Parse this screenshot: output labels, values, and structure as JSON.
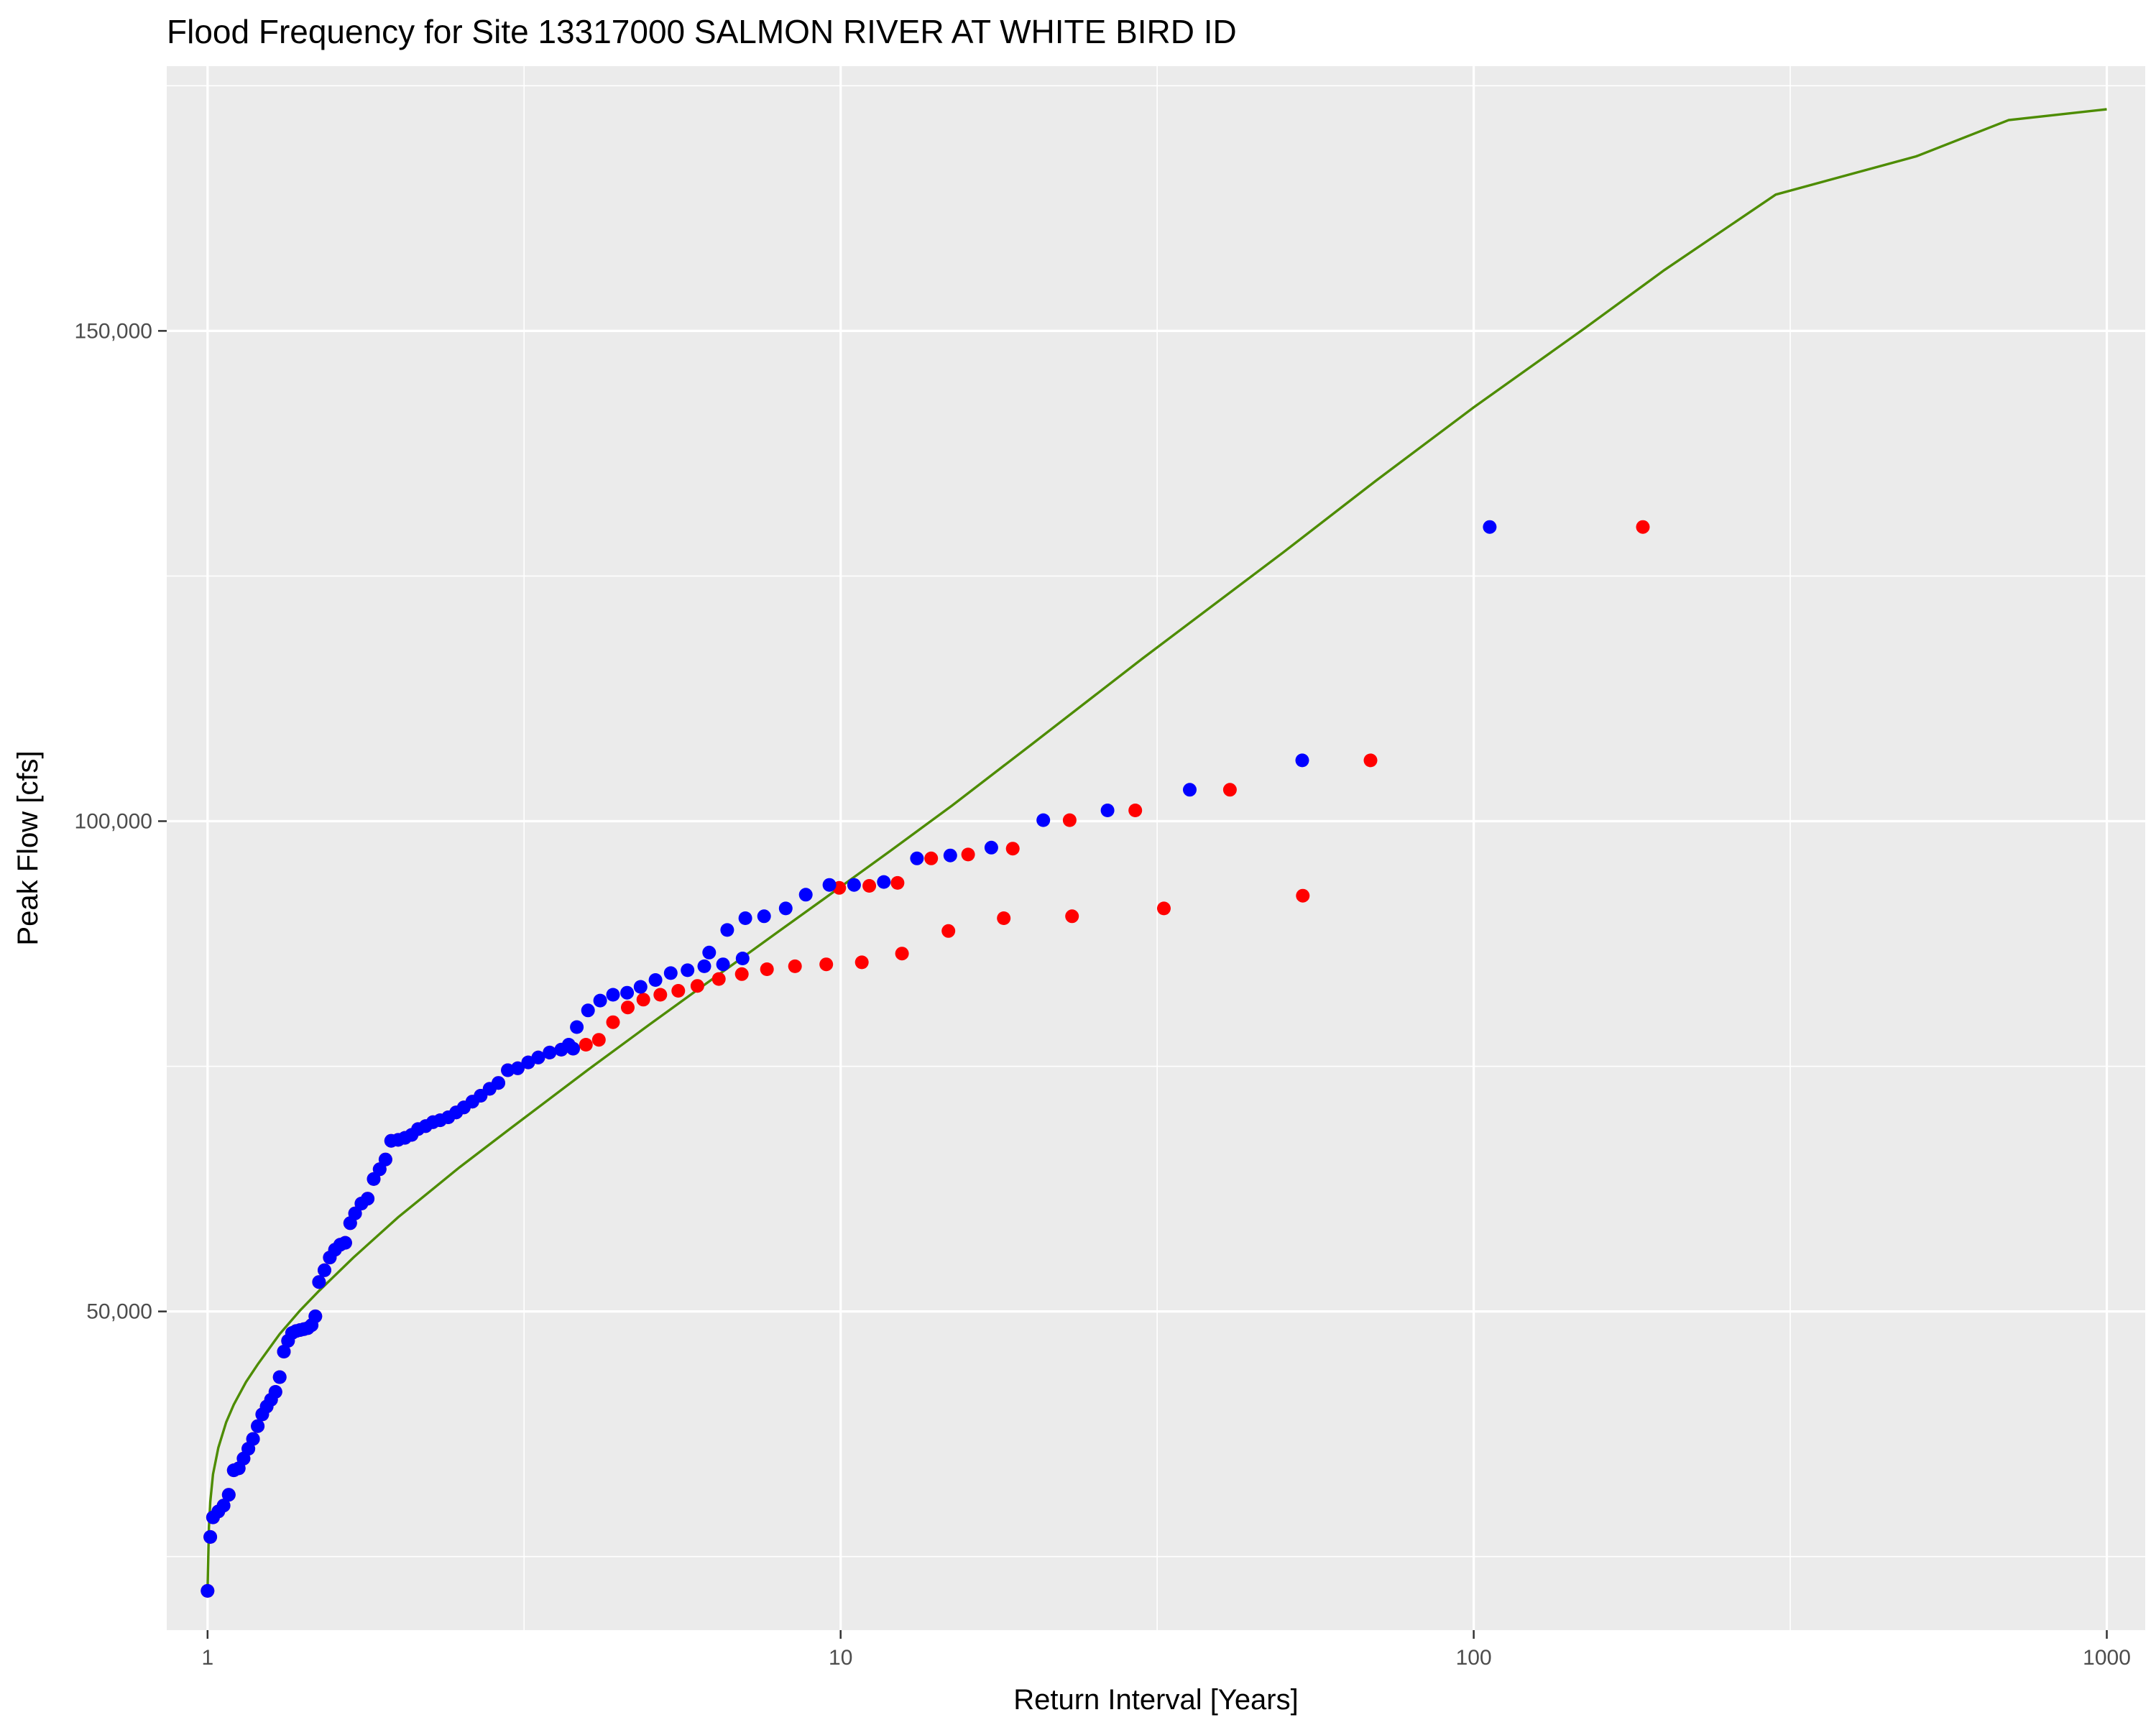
{
  "chart_data": {
    "type": "scatter",
    "title": "Flood Frequency for Site 13317000 SALMON RIVER AT WHITE BIRD ID",
    "xlabel": "Return Interval [Years]",
    "ylabel": "Peak Flow [cfs]",
    "x_scale": "log10",
    "xlim": [
      0.862,
      1150
    ],
    "ylim": [
      17500,
      177000
    ],
    "x_ticks": [
      {
        "value": 1,
        "label": "1"
      },
      {
        "value": 10,
        "label": "10"
      },
      {
        "value": 100,
        "label": "100"
      },
      {
        "value": 1000,
        "label": "1000"
      }
    ],
    "x_minor_grid": [
      3.162,
      31.62,
      316.2
    ],
    "y_ticks": [
      {
        "value": 50000,
        "label": "50,000"
      },
      {
        "value": 100000,
        "label": "100,000"
      },
      {
        "value": 150000,
        "label": "150,000"
      }
    ],
    "y_minor_grid": [
      25000,
      75000,
      125000,
      175000
    ],
    "grid": true,
    "colors": {
      "panel": "#ebebeb",
      "grid": "#ffffff",
      "series_red": "#ff0000",
      "series_blue": "#0000ff",
      "fit_line": "#4d8c00"
    },
    "series": [
      {
        "kind": "points",
        "color": "#ff0000",
        "points": [
          [
            1.0,
            21500
          ],
          [
            1.01,
            27000
          ],
          [
            1.02,
            29000
          ],
          [
            1.04,
            29600
          ],
          [
            1.06,
            30200
          ],
          [
            1.08,
            31300
          ],
          [
            1.1,
            33800
          ],
          [
            1.12,
            34000
          ],
          [
            1.14,
            35000
          ],
          [
            1.16,
            36000
          ],
          [
            1.18,
            37000
          ],
          [
            1.2,
            38300
          ],
          [
            1.22,
            39500
          ],
          [
            1.24,
            40300
          ],
          [
            1.26,
            41000
          ],
          [
            1.28,
            41800
          ],
          [
            1.3,
            43300
          ],
          [
            1.32,
            45900
          ],
          [
            1.34,
            47000
          ],
          [
            1.36,
            47800
          ],
          [
            1.38,
            48000
          ],
          [
            1.4,
            48100
          ],
          [
            1.42,
            48200
          ],
          [
            1.44,
            48300
          ],
          [
            1.46,
            48600
          ],
          [
            1.48,
            49500
          ],
          [
            1.5,
            53000
          ],
          [
            1.53,
            54200
          ],
          [
            1.56,
            55500
          ],
          [
            1.59,
            56300
          ],
          [
            1.62,
            56800
          ],
          [
            1.65,
            57000
          ],
          [
            1.68,
            59000
          ],
          [
            1.71,
            60000
          ],
          [
            1.75,
            61000
          ],
          [
            1.79,
            61500
          ],
          [
            1.83,
            63500
          ],
          [
            1.87,
            64500
          ],
          [
            1.91,
            65500
          ],
          [
            1.95,
            67400
          ],
          [
            2.0,
            67500
          ],
          [
            2.05,
            67700
          ],
          [
            2.1,
            68000
          ],
          [
            2.15,
            68600
          ],
          [
            2.21,
            68900
          ],
          [
            2.27,
            69300
          ],
          [
            2.33,
            69500
          ],
          [
            2.4,
            69800
          ],
          [
            2.47,
            70300
          ],
          [
            2.54,
            70800
          ],
          [
            2.62,
            71400
          ],
          [
            2.7,
            72000
          ],
          [
            2.79,
            72700
          ],
          [
            2.88,
            73300
          ],
          [
            2.98,
            74600
          ],
          [
            3.09,
            74800
          ],
          [
            3.21,
            75400
          ],
          [
            3.33,
            75900
          ],
          [
            3.47,
            76400
          ],
          [
            3.62,
            76700
          ],
          [
            3.78,
            76800
          ],
          [
            3.96,
            77200
          ],
          [
            4.15,
            77700
          ],
          [
            4.37,
            79500
          ],
          [
            4.61,
            81000
          ],
          [
            4.88,
            81800
          ],
          [
            5.19,
            82300
          ],
          [
            5.54,
            82700
          ],
          [
            5.94,
            83200
          ],
          [
            6.42,
            83900
          ],
          [
            6.98,
            84400
          ],
          [
            7.65,
            84900
          ],
          [
            8.47,
            85200
          ],
          [
            9.49,
            85400
          ],
          [
            10.8,
            85600
          ],
          [
            12.5,
            86500
          ],
          [
            14.8,
            88800
          ],
          [
            18.1,
            90100
          ],
          [
            23.2,
            90300
          ],
          [
            32.4,
            91100
          ],
          [
            53.7,
            92400
          ],
          [
            9.95,
            93200
          ],
          [
            11.1,
            93400
          ],
          [
            12.3,
            93700
          ],
          [
            13.9,
            96200
          ],
          [
            15.9,
            96600
          ],
          [
            18.7,
            97200
          ],
          [
            23.0,
            100100
          ],
          [
            29.2,
            101100
          ],
          [
            41.2,
            103200
          ],
          [
            68.7,
            106200
          ],
          [
            185,
            130000
          ]
        ]
      },
      {
        "kind": "points",
        "color": "#0000ff",
        "points": [
          [
            1.0,
            21500
          ],
          [
            1.01,
            27000
          ],
          [
            1.02,
            29000
          ],
          [
            1.04,
            29600
          ],
          [
            1.06,
            30200
          ],
          [
            1.08,
            31300
          ],
          [
            1.1,
            33800
          ],
          [
            1.12,
            34000
          ],
          [
            1.14,
            35000
          ],
          [
            1.16,
            36000
          ],
          [
            1.18,
            37000
          ],
          [
            1.2,
            38300
          ],
          [
            1.22,
            39500
          ],
          [
            1.24,
            40300
          ],
          [
            1.26,
            41000
          ],
          [
            1.28,
            41800
          ],
          [
            1.3,
            43300
          ],
          [
            1.32,
            45900
          ],
          [
            1.34,
            47000
          ],
          [
            1.36,
            47800
          ],
          [
            1.38,
            48000
          ],
          [
            1.4,
            48100
          ],
          [
            1.42,
            48200
          ],
          [
            1.44,
            48300
          ],
          [
            1.46,
            48600
          ],
          [
            1.48,
            49500
          ],
          [
            1.5,
            53000
          ],
          [
            1.53,
            54200
          ],
          [
            1.56,
            55500
          ],
          [
            1.59,
            56300
          ],
          [
            1.62,
            56800
          ],
          [
            1.65,
            57000
          ],
          [
            1.68,
            59000
          ],
          [
            1.71,
            60000
          ],
          [
            1.75,
            61000
          ],
          [
            1.79,
            61500
          ],
          [
            1.83,
            63500
          ],
          [
            1.87,
            64500
          ],
          [
            1.91,
            65500
          ],
          [
            1.95,
            67400
          ],
          [
            2.0,
            67500
          ],
          [
            2.05,
            67700
          ],
          [
            2.1,
            68000
          ],
          [
            2.15,
            68600
          ],
          [
            2.21,
            68900
          ],
          [
            2.27,
            69300
          ],
          [
            2.33,
            69500
          ],
          [
            2.4,
            69800
          ],
          [
            2.47,
            70300
          ],
          [
            2.54,
            70800
          ],
          [
            2.62,
            71400
          ],
          [
            2.7,
            72000
          ],
          [
            2.79,
            72700
          ],
          [
            2.88,
            73300
          ],
          [
            2.98,
            74600
          ],
          [
            3.09,
            74800
          ],
          [
            3.21,
            75400
          ],
          [
            3.33,
            75900
          ],
          [
            3.47,
            76400
          ],
          [
            3.62,
            76700
          ],
          [
            3.78,
            76800
          ],
          [
            3.72,
            77200
          ],
          [
            3.83,
            79000
          ],
          [
            3.99,
            80700
          ],
          [
            4.17,
            81700
          ],
          [
            4.37,
            82300
          ],
          [
            4.6,
            82500
          ],
          [
            4.83,
            83100
          ],
          [
            5.1,
            83800
          ],
          [
            5.39,
            84500
          ],
          [
            5.73,
            84800
          ],
          [
            6.09,
            85200
          ],
          [
            6.52,
            85400
          ],
          [
            7.0,
            86000
          ],
          [
            6.2,
            86600
          ],
          [
            6.62,
            88900
          ],
          [
            7.07,
            90100
          ],
          [
            7.57,
            90300
          ],
          [
            8.19,
            91100
          ],
          [
            8.81,
            92500
          ],
          [
            9.6,
            93500
          ],
          [
            10.5,
            93500
          ],
          [
            11.7,
            93800
          ],
          [
            13.2,
            96200
          ],
          [
            14.9,
            96500
          ],
          [
            17.3,
            97300
          ],
          [
            20.9,
            100100
          ],
          [
            26.4,
            101100
          ],
          [
            35.6,
            103200
          ],
          [
            53.6,
            106200
          ],
          [
            106,
            130000
          ]
        ]
      },
      {
        "kind": "line",
        "color": "#4d8c00",
        "points": [
          [
            1.0,
            21500
          ],
          [
            1.005,
            28000
          ],
          [
            1.01,
            30600
          ],
          [
            1.02,
            33400
          ],
          [
            1.04,
            36100
          ],
          [
            1.07,
            38700
          ],
          [
            1.1,
            40500
          ],
          [
            1.15,
            42800
          ],
          [
            1.2,
            44600
          ],
          [
            1.3,
            47700
          ],
          [
            1.4,
            50100
          ],
          [
            1.5,
            52100
          ],
          [
            1.7,
            55500
          ],
          [
            2.0,
            59600
          ],
          [
            2.5,
            64700
          ],
          [
            3.0,
            68600
          ],
          [
            4.0,
            74700
          ],
          [
            5.0,
            79300
          ],
          [
            6.0,
            83000
          ],
          [
            7.0,
            86100
          ],
          [
            8.0,
            88800
          ],
          [
            10.0,
            93300
          ],
          [
            12.0,
            97000
          ],
          [
            15.0,
            101600
          ],
          [
            20.0,
            107800
          ],
          [
            30.0,
            116600
          ],
          [
            50.0,
            127400
          ],
          [
            70.0,
            134700
          ],
          [
            100.0,
            142200
          ],
          [
            150.0,
            150300
          ],
          [
            200.0,
            156200
          ],
          [
            300.0,
            163900
          ],
          [
            500.0,
            167800
          ],
          [
            700.0,
            171500
          ],
          [
            1000.0,
            172600
          ]
        ]
      }
    ]
  }
}
